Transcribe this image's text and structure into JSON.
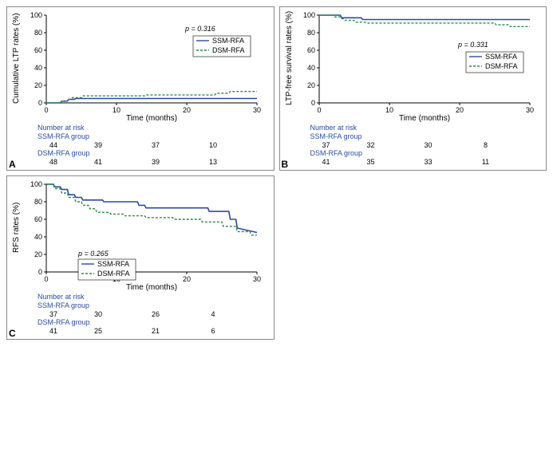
{
  "colors": {
    "ssm_line": "#2b4aa0",
    "dsm_line": "#2a8a4a",
    "axis": "#000000",
    "text": "#000000",
    "risk_label": "#2b4aa0",
    "background": "#ffffff"
  },
  "typography": {
    "axis_label_fontsize": 10,
    "tick_fontsize": 9,
    "legend_fontsize": 9,
    "panel_label_fontsize": 12,
    "risk_fontsize": 9
  },
  "panels": {
    "A": {
      "ylabel": "Cumulative LTP rates (%)",
      "xlabel": "Time (months)",
      "p_value": "p = 0.316",
      "xlim": [
        0,
        30
      ],
      "ylim": [
        0,
        100
      ],
      "xticks": [
        0,
        10,
        20,
        30
      ],
      "yticks": [
        0,
        20,
        40,
        60,
        80,
        100
      ],
      "legend": [
        "SSM-RFA",
        "DSM-RFA"
      ],
      "line_styles": {
        "SSM-RFA": "solid",
        "DSM-RFA": "dashed"
      },
      "line_widths": {
        "SSM-RFA": 1.6,
        "DSM-RFA": 1.4
      },
      "series": {
        "SSM-RFA": [
          [
            0,
            0
          ],
          [
            2,
            0
          ],
          [
            2.2,
            2
          ],
          [
            3,
            2
          ],
          [
            3.2,
            4
          ],
          [
            4,
            4
          ],
          [
            4.2,
            5
          ],
          [
            30,
            5
          ]
        ],
        "DSM-RFA": [
          [
            0,
            0
          ],
          [
            2,
            0
          ],
          [
            2.2,
            2
          ],
          [
            3,
            2
          ],
          [
            3.2,
            4
          ],
          [
            3.5,
            4
          ],
          [
            3.7,
            6
          ],
          [
            5,
            6
          ],
          [
            5.2,
            8
          ],
          [
            14,
            8
          ],
          [
            14.2,
            9
          ],
          [
            24,
            9
          ],
          [
            24.2,
            11
          ],
          [
            26,
            11
          ],
          [
            26.2,
            13
          ],
          [
            30,
            13
          ]
        ]
      },
      "number_at_risk": {
        "title": "Number at risk",
        "groups": [
          {
            "name": "SSM-RFA group",
            "values": [
              44,
              39,
              37,
              10
            ]
          },
          {
            "name": "DSM-RFA group",
            "values": [
              48,
              41,
              39,
              13
            ]
          }
        ],
        "times": [
          0,
          10,
          20,
          30
        ]
      }
    },
    "B": {
      "ylabel": "LTP-free survival rates (%)",
      "xlabel": "Time (months)",
      "p_value": "p = 0.331",
      "xlim": [
        0,
        30
      ],
      "ylim": [
        0,
        100
      ],
      "xticks": [
        0,
        10,
        20,
        30
      ],
      "yticks": [
        0,
        20,
        40,
        60,
        80,
        100
      ],
      "legend": [
        "SSM-RFA",
        "DSM-RFA"
      ],
      "line_styles": {
        "SSM-RFA": "solid",
        "DSM-RFA": "dashed"
      },
      "line_widths": {
        "SSM-RFA": 1.6,
        "DSM-RFA": 1.4
      },
      "series": {
        "SSM-RFA": [
          [
            0,
            100
          ],
          [
            3,
            100
          ],
          [
            3.2,
            97
          ],
          [
            6,
            97
          ],
          [
            6.2,
            95
          ],
          [
            30,
            95
          ]
        ],
        "DSM-RFA": [
          [
            0,
            100
          ],
          [
            2,
            100
          ],
          [
            2.2,
            98
          ],
          [
            3,
            98
          ],
          [
            3.2,
            96
          ],
          [
            3.5,
            96
          ],
          [
            3.7,
            94
          ],
          [
            5,
            94
          ],
          [
            5.2,
            92
          ],
          [
            6.5,
            92
          ],
          [
            6.7,
            91
          ],
          [
            25,
            91
          ],
          [
            25.2,
            89
          ],
          [
            27,
            89
          ],
          [
            27.2,
            87
          ],
          [
            30,
            87
          ]
        ]
      },
      "number_at_risk": {
        "title": "Number at risk",
        "groups": [
          {
            "name": "SSM-RFA group",
            "values": [
              37,
              32,
              30,
              8
            ]
          },
          {
            "name": "DSM-RFA group",
            "values": [
              41,
              35,
              33,
              11
            ]
          }
        ],
        "times": [
          0,
          10,
          20,
          30
        ]
      }
    },
    "C": {
      "ylabel": "RFS rates (%)",
      "xlabel": "Time (months)",
      "p_value": "p = 0.265",
      "xlim": [
        0,
        30
      ],
      "ylim": [
        0,
        100
      ],
      "xticks": [
        0,
        10,
        20,
        30
      ],
      "yticks": [
        0,
        20,
        40,
        60,
        80,
        100
      ],
      "legend": [
        "SSM-RFA",
        "DSM-RFA"
      ],
      "line_styles": {
        "SSM-RFA": "solid",
        "DSM-RFA": "dashed"
      },
      "line_widths": {
        "SSM-RFA": 1.6,
        "DSM-RFA": 1.4
      },
      "series": {
        "SSM-RFA": [
          [
            0,
            100
          ],
          [
            1,
            100
          ],
          [
            1.2,
            97
          ],
          [
            2,
            97
          ],
          [
            2.2,
            94
          ],
          [
            3,
            94
          ],
          [
            3.2,
            88
          ],
          [
            4,
            88
          ],
          [
            4.2,
            85
          ],
          [
            5,
            85
          ],
          [
            5.2,
            82
          ],
          [
            8,
            82
          ],
          [
            8.2,
            80
          ],
          [
            13,
            80
          ],
          [
            13.2,
            76
          ],
          [
            14,
            76
          ],
          [
            14.2,
            73
          ],
          [
            23,
            73
          ],
          [
            23.2,
            69
          ],
          [
            26,
            69
          ],
          [
            26.2,
            60
          ],
          [
            27,
            60
          ],
          [
            27.2,
            50
          ],
          [
            30,
            45
          ]
        ],
        "DSM-RFA": [
          [
            0,
            100
          ],
          [
            1,
            100
          ],
          [
            1.2,
            95
          ],
          [
            2,
            95
          ],
          [
            2.2,
            90
          ],
          [
            3,
            90
          ],
          [
            3.2,
            85
          ],
          [
            4,
            85
          ],
          [
            4.2,
            80
          ],
          [
            5,
            80
          ],
          [
            5.2,
            76
          ],
          [
            6,
            76
          ],
          [
            6.2,
            72
          ],
          [
            7,
            72
          ],
          [
            7.2,
            68
          ],
          [
            9,
            68
          ],
          [
            9.2,
            66
          ],
          [
            11,
            66
          ],
          [
            11.2,
            64
          ],
          [
            14,
            64
          ],
          [
            14.2,
            62
          ],
          [
            18,
            62
          ],
          [
            18.2,
            60
          ],
          [
            22,
            60
          ],
          [
            22.2,
            57
          ],
          [
            25,
            57
          ],
          [
            25.2,
            52
          ],
          [
            27,
            52
          ],
          [
            27.2,
            46
          ],
          [
            29,
            46
          ],
          [
            29.2,
            42
          ],
          [
            30,
            42
          ]
        ]
      },
      "number_at_risk": {
        "title": "Number at risk",
        "groups": [
          {
            "name": "SSM-RFA group",
            "values": [
              37,
              30,
              26,
              4
            ]
          },
          {
            "name": "DSM-RFA group",
            "values": [
              41,
              25,
              21,
              6
            ]
          }
        ],
        "times": [
          0,
          10,
          20,
          30
        ]
      }
    }
  }
}
